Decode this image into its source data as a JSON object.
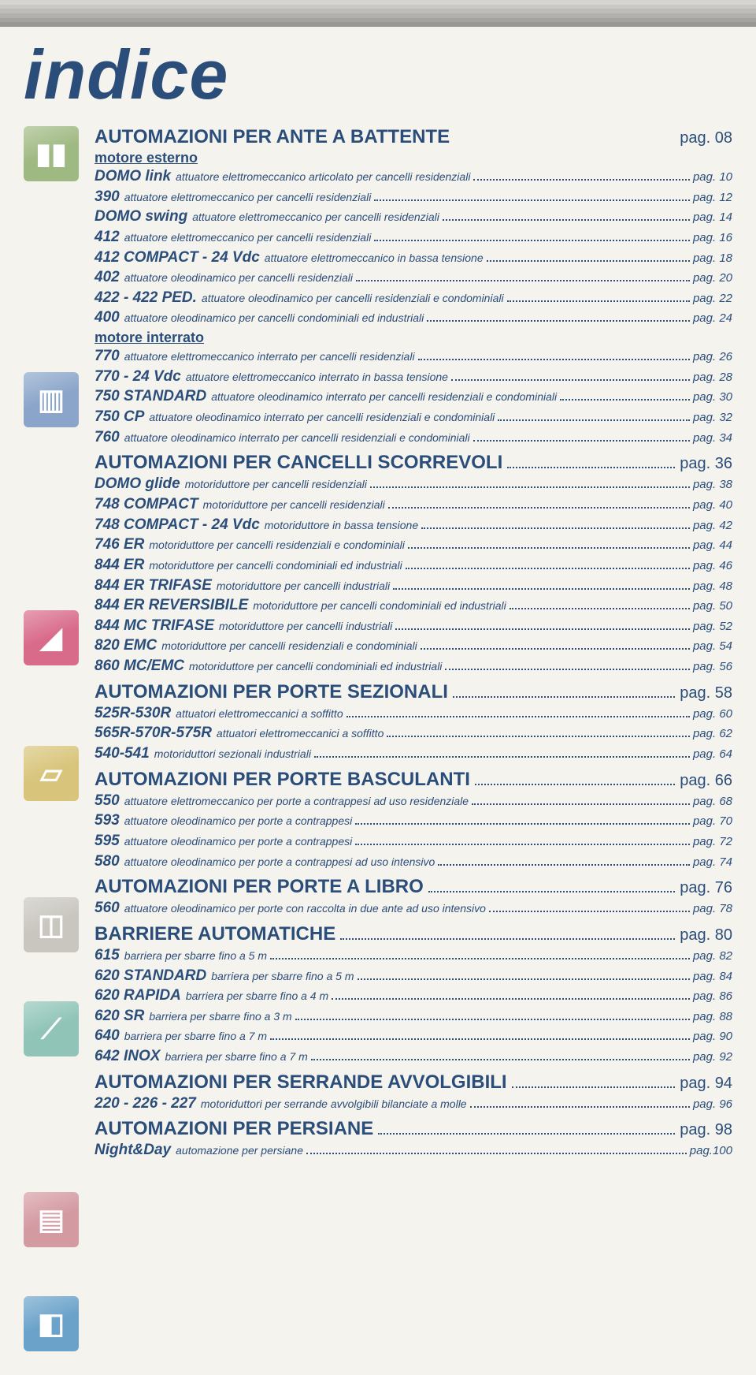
{
  "colors": {
    "text": "#2a4d7a",
    "page_bg": "#f5f3ee",
    "stripes": [
      "#d6d4cf",
      "#cac8c4",
      "#bebcb8",
      "#b2b0ac",
      "#a6a4a0",
      "#9a9894"
    ]
  },
  "page_title": "indice",
  "pag_label": "pag.",
  "icons": [
    {
      "name": "gate-icon",
      "bg": "#9fb982",
      "glyph": "▮▮"
    },
    {
      "name": "sliding-icon",
      "bg": "#8aa5c9",
      "glyph": "▥"
    },
    {
      "name": "sectional-icon",
      "bg": "#d86a8a",
      "glyph": "◢"
    },
    {
      "name": "overhead-icon",
      "bg": "#d8c47a",
      "glyph": "▱"
    },
    {
      "name": "folding-icon",
      "bg": "#c9c6bf",
      "glyph": "◫"
    },
    {
      "name": "barrier-icon",
      "bg": "#8fc4b6",
      "glyph": "⟋"
    },
    {
      "name": "shutter-icon",
      "bg": "#d49aa2",
      "glyph": "▤"
    },
    {
      "name": "blind-icon",
      "bg": "#6aa2c9",
      "glyph": "◧"
    }
  ],
  "sections": [
    {
      "title": "AUTOMAZIONI PER ANTE A BATTENTE",
      "page": "08",
      "no_dots": true,
      "groups": [
        {
          "subheading": "motore esterno",
          "entries": [
            {
              "model": "DOMO link",
              "desc": "attuatore elettromeccanico articolato per cancelli residenziali",
              "page": "10"
            },
            {
              "model": "390",
              "desc": "attuatore elettromeccanico per cancelli residenziali",
              "page": "12"
            },
            {
              "model": "DOMO swing",
              "desc": "attuatore elettromeccanico per cancelli residenziali",
              "page": "14"
            },
            {
              "model": "412",
              "desc": "attuatore elettromeccanico per cancelli residenziali",
              "page": "16"
            },
            {
              "model": "412 COMPACT - 24 Vdc",
              "desc": "attuatore elettromeccanico in bassa tensione",
              "page": "18"
            },
            {
              "model": "402",
              "desc": "attuatore oleodinamico per cancelli residenziali",
              "page": "20"
            },
            {
              "model": "422 - 422 PED.",
              "desc": "attuatore oleodinamico per cancelli residenziali e condominiali",
              "page": "22"
            },
            {
              "model": "400",
              "desc": "attuatore oleodinamico per cancelli condominiali ed industriali",
              "page": "24"
            }
          ]
        },
        {
          "subheading": "motore interrato",
          "entries": [
            {
              "model": "770",
              "desc": "attuatore elettromeccanico interrato per cancelli residenziali",
              "page": "26"
            },
            {
              "model": "770 - 24 Vdc",
              "desc": "attuatore elettromeccanico interrato in bassa tensione",
              "page": "28"
            },
            {
              "model": "750 STANDARD",
              "desc": "attuatore oleodinamico interrato per cancelli residenziali e condominiali",
              "page": "30"
            },
            {
              "model": "750 CP",
              "desc": "attuatore oleodinamico interrato per cancelli residenziali e condominiali",
              "page": "32"
            },
            {
              "model": "760",
              "desc": "attuatore oleodinamico interrato per cancelli residenziali e condominiali",
              "page": "34"
            }
          ]
        }
      ]
    },
    {
      "title": "AUTOMAZIONI PER CANCELLI SCORREVOLI",
      "page": "36",
      "groups": [
        {
          "entries": [
            {
              "model": "DOMO glide",
              "desc": "motoriduttore per cancelli residenziali",
              "page": "38"
            },
            {
              "model": "748 COMPACT",
              "desc": "motoriduttore per cancelli residenziali",
              "page": "40"
            },
            {
              "model": "748 COMPACT - 24 Vdc",
              "desc": "motoriduttore in bassa tensione",
              "page": "42"
            },
            {
              "model": "746 ER",
              "desc": "motoriduttore per cancelli residenziali e condominiali",
              "page": "44"
            },
            {
              "model": "844 ER",
              "desc": "motoriduttore per cancelli condominiali ed industriali",
              "page": "46"
            },
            {
              "model": "844 ER TRIFASE",
              "desc": "motoriduttore per cancelli industriali",
              "page": "48"
            },
            {
              "model": "844 ER REVERSIBILE",
              "desc": "motoriduttore per cancelli condominiali ed industriali",
              "page": "50"
            },
            {
              "model": "844 MC TRIFASE",
              "desc": "motoriduttore per cancelli industriali",
              "page": "52"
            },
            {
              "model": "820 EMC",
              "desc": "motoriduttore per cancelli residenziali e condominiali",
              "page": "54"
            },
            {
              "model": "860 MC/EMC",
              "desc": "motoriduttore per cancelli condominiali ed industriali",
              "page": "56"
            }
          ]
        }
      ]
    },
    {
      "title": "AUTOMAZIONI PER PORTE SEZIONALI",
      "page": "58",
      "groups": [
        {
          "entries": [
            {
              "model": "525R-530R",
              "desc": "attuatori elettromeccanici a soffitto",
              "page": "60"
            },
            {
              "model": "565R-570R-575R",
              "desc": "attuatori elettromeccanici a soffitto",
              "page": "62"
            },
            {
              "model": "540-541",
              "desc": "motoriduttori sezionali industriali",
              "page": "64"
            }
          ]
        }
      ]
    },
    {
      "title": "AUTOMAZIONI PER PORTE BASCULANTI",
      "page": "66",
      "groups": [
        {
          "entries": [
            {
              "model": "550",
              "desc": "attuatore elettromeccanico per porte a contrappesi ad uso residenziale",
              "page": "68"
            },
            {
              "model": "593",
              "desc": "attuatore oleodinamico per porte a contrappesi",
              "page": "70"
            },
            {
              "model": "595",
              "desc": "attuatore oleodinamico per porte a contrappesi",
              "page": "72"
            },
            {
              "model": "580",
              "desc": "attuatore oleodinamico per porte a contrappesi ad uso intensivo",
              "page": "74"
            }
          ]
        }
      ]
    },
    {
      "title": "AUTOMAZIONI PER PORTE A LIBRO",
      "page": "76",
      "groups": [
        {
          "entries": [
            {
              "model": "560",
              "desc": "attuatore oleodinamico per porte con raccolta in due ante ad uso intensivo",
              "page": "78"
            }
          ]
        }
      ]
    },
    {
      "title": "BARRIERE AUTOMATICHE",
      "page": "80",
      "groups": [
        {
          "entries": [
            {
              "model": "615",
              "desc": "barriera per sbarre fino a 5 m",
              "page": "82"
            },
            {
              "model": "620 STANDARD",
              "desc": "barriera per sbarre fino a 5 m",
              "page": "84"
            },
            {
              "model": "620 RAPIDA",
              "desc": "barriera per sbarre fino a 4 m",
              "page": "86"
            },
            {
              "model": "620 SR",
              "desc": "barriera per sbarre fino a 3 m",
              "page": "88"
            },
            {
              "model": "640",
              "desc": "barriera per sbarre fino a 7 m",
              "page": "90"
            },
            {
              "model": "642 INOX",
              "desc": "barriera per sbarre fino a 7 m",
              "page": "92"
            }
          ]
        }
      ]
    },
    {
      "title": "AUTOMAZIONI PER SERRANDE AVVOLGIBILI",
      "page": "94",
      "groups": [
        {
          "entries": [
            {
              "model": "220 - 226 - 227",
              "desc": "motoriduttori per serrande avvolgibili bilanciate a molle",
              "page": "96"
            }
          ]
        }
      ]
    },
    {
      "title": "AUTOMAZIONI PER PERSIANE",
      "page": "98",
      "groups": [
        {
          "entries": [
            {
              "model": "Night&Day",
              "desc": "automazione per persiane",
              "page": "100",
              "no_space": true
            }
          ]
        }
      ]
    }
  ]
}
